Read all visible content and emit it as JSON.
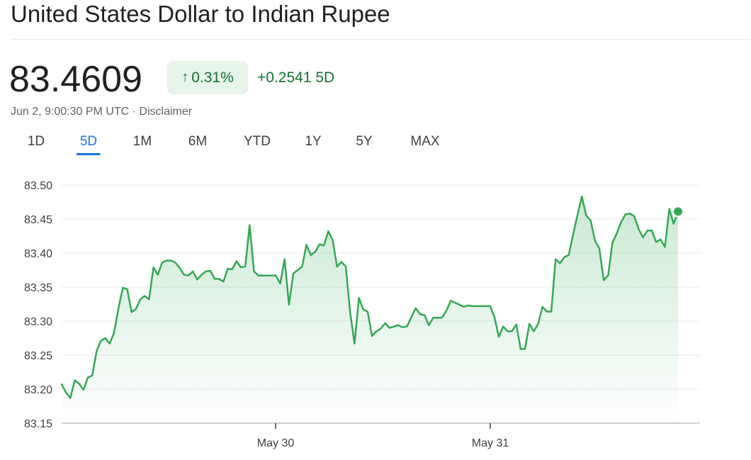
{
  "header": {
    "title": "United States Dollar to Indian Rupee"
  },
  "quote": {
    "price": "83.4609",
    "percent_change": "0.31%",
    "change": "+0.2541 5D",
    "timestamp": "Jun 2, 9:00:30 PM UTC · ",
    "disclaimer": "Disclaimer"
  },
  "ranges": {
    "tabs": [
      "1D",
      "5D",
      "1M",
      "6M",
      "YTD",
      "1Y",
      "5Y",
      "MAX"
    ],
    "active": "5D"
  },
  "colors": {
    "line": "#34a853",
    "badge_bg": "#e6f4ea",
    "positive_text": "#137333",
    "active_tab": "#1a73e8"
  },
  "chart_data": {
    "type": "area",
    "title": "",
    "xlabel": "",
    "ylabel": "",
    "ylim": [
      83.15,
      83.5
    ],
    "yticks": [
      "83.50",
      "83.45",
      "83.40",
      "83.35",
      "83.30",
      "83.25",
      "83.20",
      "83.15"
    ],
    "xtick_labels": [
      "May 30",
      "May 31"
    ],
    "grid": true,
    "series": [
      {
        "values": [
          83.207,
          83.195,
          83.187,
          83.213,
          83.208,
          83.199,
          83.217,
          83.22,
          83.256,
          83.271,
          83.275,
          83.267,
          83.283,
          83.319,
          83.349,
          83.347,
          83.313,
          83.318,
          83.332,
          83.337,
          83.332,
          83.379,
          83.368,
          83.386,
          83.389,
          83.389,
          83.386,
          83.378,
          83.368,
          83.367,
          83.373,
          83.361,
          83.368,
          83.373,
          83.374,
          83.362,
          83.362,
          83.358,
          83.377,
          83.376,
          83.388,
          83.379,
          83.38,
          83.441,
          83.373,
          83.367,
          83.367,
          83.367,
          83.367,
          83.367,
          83.355,
          83.391,
          83.324,
          83.37,
          83.375,
          83.38,
          83.412,
          83.397,
          83.402,
          83.413,
          83.411,
          83.432,
          83.419,
          83.38,
          83.387,
          83.38,
          83.313,
          83.267,
          83.334,
          83.317,
          83.314,
          83.278,
          83.285,
          83.289,
          83.297,
          83.29,
          83.292,
          83.294,
          83.291,
          83.292,
          83.306,
          83.319,
          83.31,
          83.309,
          83.294,
          83.305,
          83.305,
          83.305,
          83.315,
          83.33,
          83.327,
          83.324,
          83.321,
          83.323,
          83.322,
          83.322,
          83.322,
          83.322,
          83.322,
          83.306,
          83.277,
          83.292,
          83.285,
          83.285,
          83.295,
          83.259,
          83.259,
          83.296,
          83.285,
          83.296,
          83.321,
          83.314,
          83.314,
          83.391,
          83.385,
          83.394,
          83.397,
          83.427,
          83.456,
          83.483,
          83.455,
          83.448,
          83.418,
          83.407,
          83.36,
          83.367,
          83.415,
          83.429,
          83.446,
          83.457,
          83.458,
          83.454,
          83.435,
          83.423,
          83.433,
          83.433,
          83.416,
          83.42,
          83.409,
          83.465,
          83.443,
          83.461
        ]
      }
    ]
  }
}
